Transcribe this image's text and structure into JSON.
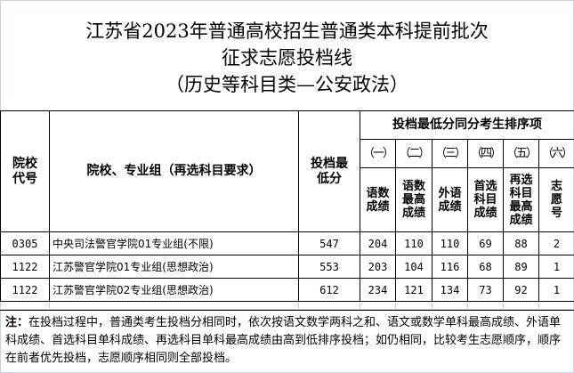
{
  "title": {
    "line1": "江苏省2023年普通高校招生普通类本科提前批次",
    "line2": "征求志愿投档线",
    "line3": "（历史等科目类—公安政法）"
  },
  "table": {
    "headers": {
      "code": "院校代号",
      "name": "院校、专业组（再选科目要求）",
      "min_score": "投档最低分",
      "tie_group": "投档最低分同分考生排序项",
      "tie_items": [
        {
          "num": "（一）",
          "label": "语数成绩"
        },
        {
          "num": "（二）",
          "label": "语数最高成绩"
        },
        {
          "num": "（三）",
          "label": "外语成绩"
        },
        {
          "num": "（四）",
          "label": "首选科目成绩"
        },
        {
          "num": "（五）",
          "label": "再选科目最高成绩"
        },
        {
          "num": "（六）",
          "label": "志愿号"
        }
      ]
    },
    "rows": [
      {
        "code": "0305",
        "name": "中央司法警官学院01专业组(不限)",
        "score": "547",
        "t": [
          "204",
          "110",
          "110",
          "69",
          "88",
          "2"
        ]
      },
      {
        "code": "1122",
        "name": "江苏警官学院01专业组(思想政治)",
        "score": "553",
        "t": [
          "203",
          "104",
          "116",
          "68",
          "89",
          "1"
        ]
      },
      {
        "code": "1122",
        "name": "江苏警官学院02专业组(思想政治)",
        "score": "612",
        "t": [
          "234",
          "121",
          "134",
          "73",
          "92",
          "1"
        ]
      }
    ]
  },
  "note": {
    "label": "注：",
    "text": "在投档过程中，普通类考生投档分相同时，依次按语文数学两科之和、语文或数学单科最高成绩、外语单科成绩、首选科目单科成绩、再选科目单科最高成绩由高到低排序投档；如仍相同，比较考生志愿顺序，顺序在前者优先投档，志愿顺序相同则全部投档。"
  }
}
